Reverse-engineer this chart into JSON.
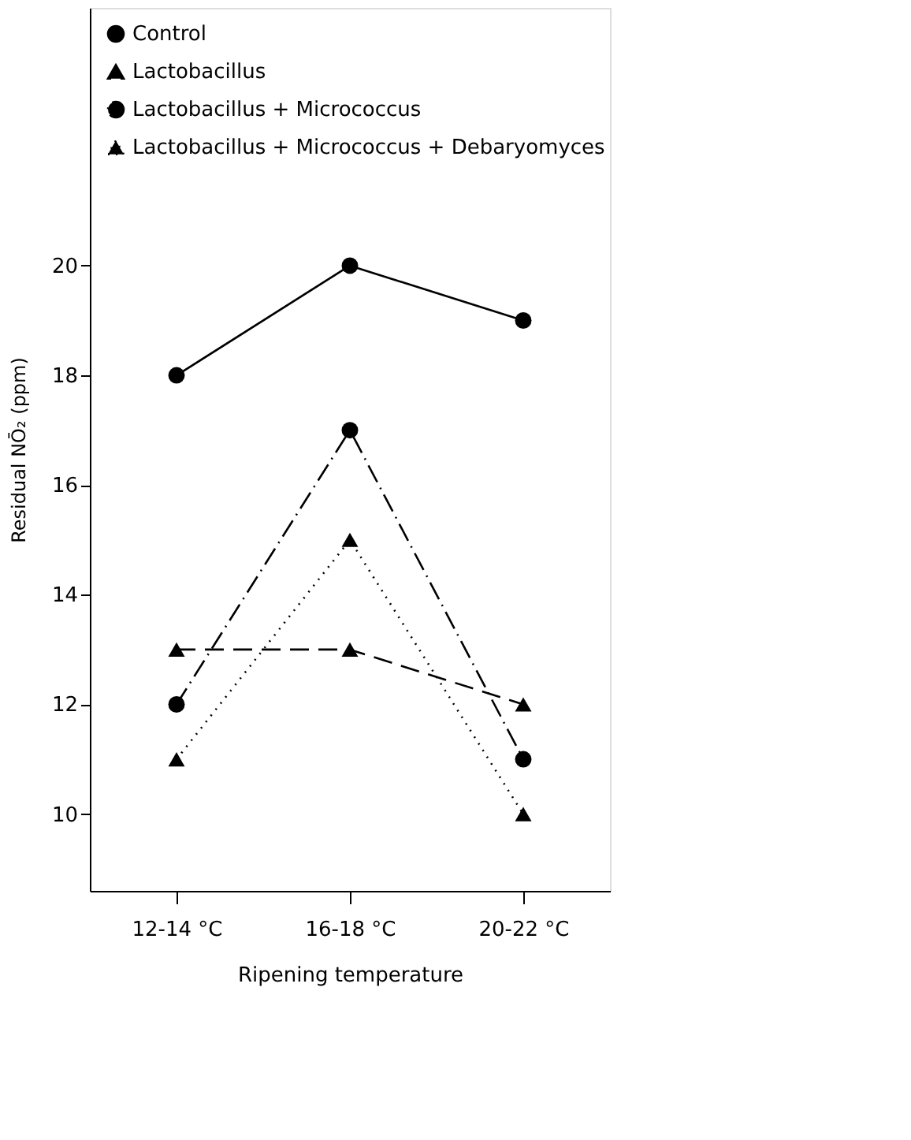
{
  "chart_data": {
    "type": "line",
    "xlabel": "Ripening temperature",
    "ylabel": "Residual NŌ₂ (ppm)",
    "categories": [
      "12-14 °C",
      "16-18 °C",
      "20-22 °C"
    ],
    "ylim": [
      8.6,
      24.7
    ],
    "yticks": [
      10,
      12,
      14,
      16,
      18,
      20
    ],
    "grid": false,
    "legend": "top left",
    "series": [
      {
        "name": "Control",
        "color": "#000000",
        "marker": "circle",
        "line_style": "solid",
        "values": [
          18,
          20,
          19
        ]
      },
      {
        "name": "Lactobacillus",
        "color": "#000000",
        "marker": "triangle",
        "line_style": "dashed",
        "values": [
          13,
          13,
          12
        ]
      },
      {
        "name": "Lactobacillus + Micrococcus",
        "color": "#000000",
        "marker": "circle",
        "line_style": "dashdot",
        "values": [
          12,
          17,
          11
        ]
      },
      {
        "name": "Lactobacillus + Micrococcus + Debaryomyces",
        "color": "#000000",
        "marker": "triangle",
        "line_style": "dotted",
        "values": [
          11,
          15,
          10
        ]
      }
    ]
  }
}
